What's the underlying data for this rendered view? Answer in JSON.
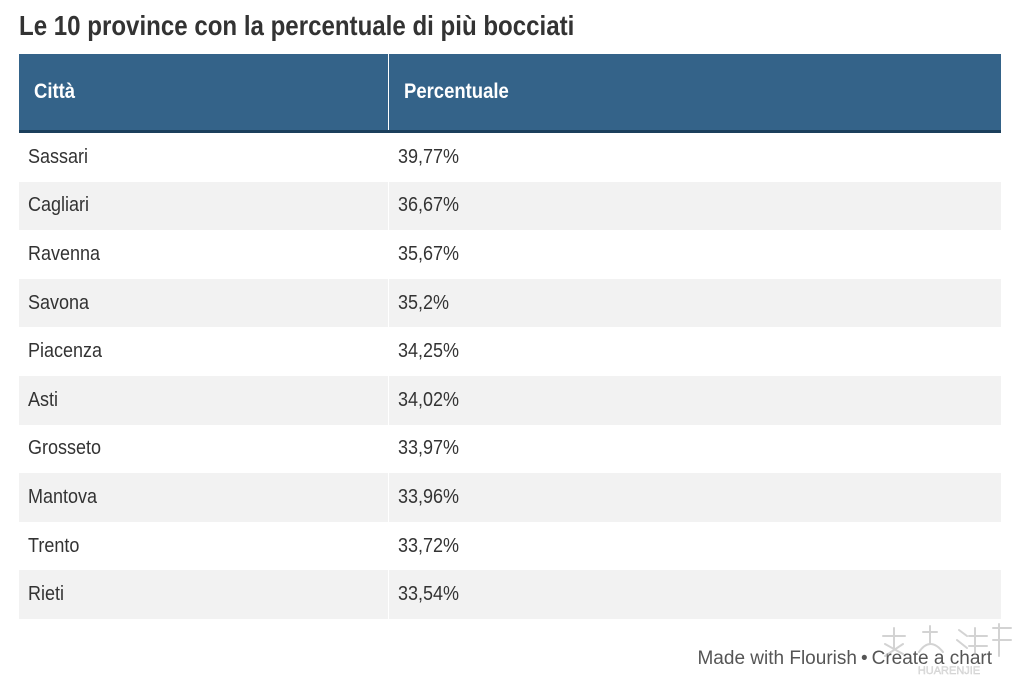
{
  "title": "Le 10 province con la percentuale di più bocciati",
  "table": {
    "headers": [
      "Città",
      "Percentuale"
    ],
    "rows": [
      [
        "Sassari",
        "39,77%"
      ],
      [
        "Cagliari",
        "36,67%"
      ],
      [
        "Ravenna",
        "35,67%"
      ],
      [
        "Savona",
        "35,2%"
      ],
      [
        "Piacenza",
        "34,25%"
      ],
      [
        "Asti",
        "34,02%"
      ],
      [
        "Grosseto",
        "33,97%"
      ],
      [
        "Mantova",
        "33,96%"
      ],
      [
        "Trento",
        "33,72%"
      ],
      [
        "Rieti",
        "33,54%"
      ]
    ]
  },
  "footer": {
    "made_with": "Made with Flourish",
    "separator": "•",
    "create_chart": "Create a chart"
  },
  "watermark": {
    "text": "HUARENJIE"
  },
  "colors": {
    "header_bg": "#346389",
    "header_text": "#ffffff",
    "stripe": "#f2f2f2",
    "text": "#333333"
  }
}
